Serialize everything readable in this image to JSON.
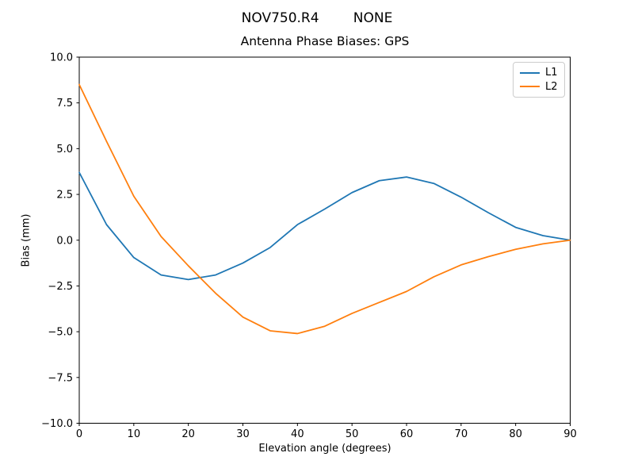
{
  "figure": {
    "suptitle": "NOV750.R4        NONE"
  },
  "chart_data": {
    "type": "line",
    "title": "Antenna Phase Biases: GPS",
    "suptitle": "NOV750.R4        NONE",
    "xlabel": "Elevation angle (degrees)",
    "ylabel": "Bias (mm)",
    "xlim": [
      0,
      90
    ],
    "ylim": [
      -10,
      10
    ],
    "grid": false,
    "legend_position": "upper right",
    "xticks": [
      0,
      10,
      20,
      30,
      40,
      50,
      60,
      70,
      80,
      90
    ],
    "xtick_labels": [
      "0",
      "10",
      "20",
      "30",
      "40",
      "50",
      "60",
      "70",
      "80",
      "90"
    ],
    "yticks": [
      10,
      7.5,
      5,
      2.5,
      0,
      -2.5,
      -5,
      -7.5,
      -10
    ],
    "ytick_labels": [
      "10.0",
      "7.5",
      "5.0",
      "2.5",
      "0.0",
      "−2.5",
      "−5.0",
      "−7.5",
      "−10.0"
    ],
    "x": [
      0,
      5,
      10,
      15,
      20,
      25,
      30,
      35,
      40,
      45,
      50,
      55,
      60,
      65,
      70,
      75,
      80,
      85,
      90
    ],
    "series": [
      {
        "name": "L1",
        "color": "#1f77b4",
        "values": [
          3.7,
          0.85,
          -0.95,
          -1.9,
          -2.15,
          -1.9,
          -1.25,
          -0.4,
          0.85,
          1.7,
          2.6,
          3.25,
          3.45,
          3.1,
          2.35,
          1.5,
          0.7,
          0.25,
          0.0
        ]
      },
      {
        "name": "L2",
        "color": "#ff7f0e",
        "values": [
          8.5,
          5.4,
          2.4,
          0.2,
          -1.4,
          -2.9,
          -4.2,
          -4.95,
          -5.1,
          -4.7,
          -4.0,
          -3.4,
          -2.8,
          -2.0,
          -1.35,
          -0.9,
          -0.5,
          -0.2,
          0.0
        ]
      }
    ]
  }
}
